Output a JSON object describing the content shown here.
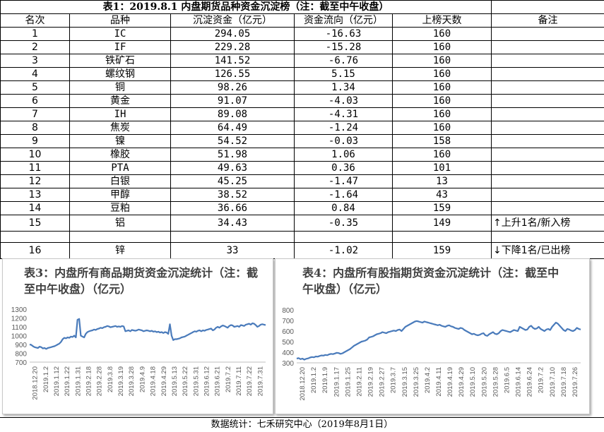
{
  "table": {
    "title": "表1：2019.8.1 内盘期货品种资金沉淀榜（注：截至中午收盘）",
    "headers": [
      "名次",
      "品种",
      "沉淀资金（亿元）",
      "资金流向（亿元）",
      "上榜天数",
      "备注"
    ],
    "rows": [
      {
        "rank": "1",
        "name": "IC",
        "fund": "294.05",
        "flow": "-16.63",
        "days": "160",
        "note": ""
      },
      {
        "rank": "2",
        "name": "IF",
        "fund": "229.28",
        "flow": "-15.28",
        "days": "160",
        "note": ""
      },
      {
        "rank": "3",
        "name": "铁矿石",
        "fund": "141.52",
        "flow": "-6.76",
        "days": "160",
        "note": ""
      },
      {
        "rank": "4",
        "name": "螺纹钢",
        "fund": "126.55",
        "flow": "5.15",
        "days": "160",
        "note": ""
      },
      {
        "rank": "5",
        "name": "铜",
        "fund": "98.26",
        "flow": "1.34",
        "days": "160",
        "note": ""
      },
      {
        "rank": "6",
        "name": "黄金",
        "fund": "91.07",
        "flow": "-4.03",
        "days": "160",
        "note": ""
      },
      {
        "rank": "7",
        "name": "IH",
        "fund": "89.08",
        "flow": "-4.31",
        "days": "160",
        "note": ""
      },
      {
        "rank": "8",
        "name": "焦炭",
        "fund": "64.49",
        "flow": "-1.24",
        "days": "160",
        "note": ""
      },
      {
        "rank": "9",
        "name": "镍",
        "fund": "54.52",
        "flow": "-0.03",
        "days": "158",
        "note": ""
      },
      {
        "rank": "10",
        "name": "橡胶",
        "fund": "51.98",
        "flow": "1.06",
        "days": "160",
        "note": ""
      },
      {
        "rank": "11",
        "name": "PTA",
        "fund": "49.63",
        "flow": "0.36",
        "days": "101",
        "note": ""
      },
      {
        "rank": "12",
        "name": "白银",
        "fund": "45.25",
        "flow": "-1.47",
        "days": "13",
        "note": ""
      },
      {
        "rank": "13",
        "name": "甲醇",
        "fund": "38.52",
        "flow": "-1.64",
        "days": "43",
        "note": ""
      },
      {
        "rank": "14",
        "name": "豆粕",
        "fund": "36.66",
        "flow": "0.84",
        "days": "159",
        "note": ""
      },
      {
        "rank": "15",
        "name": "铝",
        "fund": "34.43",
        "flow": "-0.35",
        "days": "149",
        "note": "↑上升1名/新入榜"
      },
      {
        "rank": "",
        "name": "",
        "fund": "",
        "flow": "",
        "days": "",
        "note": ""
      },
      {
        "rank": "16",
        "name": "锌",
        "fund": "33",
        "flow": "-1.02",
        "days": "159",
        "note": "↓下降1名/已出榜"
      }
    ]
  },
  "chart_data": [
    {
      "type": "line",
      "title": "表3：内盘所有商品期货资金沉淀统计（注：截至中午收盘）（亿元）",
      "color": "#4a7bbb",
      "ylim": [
        700,
        1300
      ],
      "yticks": [
        "700",
        "800",
        "900",
        "1000",
        "1100",
        "1200",
        "1300"
      ],
      "xticks": [
        "2018.12.20",
        "2019.1.2",
        "2019.1.12",
        "2019.1.22",
        "2019.1.31",
        "2019.2.18",
        "2019.2.28",
        "2019.3.8",
        "2019.3.19",
        "2019.3.28",
        "2019.4.9",
        "2019.4.18",
        "2019.4.29",
        "2019.5.13",
        "2019.5.22",
        "2019.5.31",
        "2019.6.12",
        "2019.6.21",
        "2019.7.2",
        "2019.7.11",
        "2019.7.22",
        "2019.7.31"
      ],
      "values": [
        900,
        895,
        880,
        870,
        865,
        860,
        875,
        870,
        855,
        860,
        850,
        860,
        865,
        870,
        875,
        880,
        890,
        900,
        910,
        930,
        960,
        975,
        970,
        980,
        975,
        990,
        985,
        1000,
        980,
        1180,
        1190,
        1000,
        990,
        980,
        1020,
        1040,
        1050,
        1055,
        1060,
        1070,
        1065,
        1075,
        1080,
        1090,
        1085,
        1095,
        1100,
        1110,
        1105,
        1095,
        1100,
        1105,
        1110,
        1100,
        1105,
        1100,
        1110,
        1105,
        1050,
        1055,
        1060,
        1050,
        1065,
        1060,
        1055,
        1060,
        1070,
        1065,
        1060,
        1050,
        1055,
        1060,
        1055,
        1050,
        1055,
        1045,
        1050,
        1040,
        1045,
        1035,
        1040,
        1030,
        1040,
        1035,
        1020,
        1130,
        1000,
        950,
        960,
        960,
        965,
        970,
        980,
        985,
        990,
        1000,
        1010,
        1020,
        1030,
        1040,
        1050,
        1045,
        1055,
        1060,
        1050,
        1060,
        1055,
        1065,
        1070,
        1075,
        1080,
        1060,
        1070,
        1090,
        1100,
        1090,
        1105,
        1115,
        1110,
        1100,
        1090,
        1110,
        1120,
        1115,
        1100,
        1105,
        1110,
        1100,
        1120,
        1115,
        1110,
        1125,
        1130,
        1135,
        1125,
        1140,
        1135,
        1120,
        1100,
        1110,
        1125,
        1130,
        1125,
        1120
      ]
    },
    {
      "type": "line",
      "title": "表4：内盘所有股指期货资金沉淀统计（注：截至中午收盘）（亿元）",
      "color": "#4a7bbb",
      "ylim": [
        300,
        800
      ],
      "yticks": [
        "300",
        "400",
        "500",
        "600",
        "700",
        "800"
      ],
      "xticks": [
        "2018.12.20",
        "2019.1.2",
        "2019.1.9",
        "2019.1.17",
        "2019.1.25",
        "2019.2.11",
        "2019.2.19",
        "2019.2.27",
        "2019.3.7",
        "2019.3.15",
        "2019.3.25",
        "2019.4.2",
        "2019.4.11",
        "2019.4.19",
        "2019.4.29",
        "2019.5.10",
        "2019.5.20",
        "2019.5.28",
        "2019.6.5",
        "2019.6.14",
        "2019.6.24",
        "2019.7.2",
        "2019.7.10",
        "2019.7.18",
        "2019.7.26"
      ],
      "values": [
        340,
        345,
        335,
        340,
        330,
        338,
        342,
        350,
        355,
        352,
        360,
        358,
        365,
        370,
        368,
        375,
        372,
        380,
        385,
        382,
        388,
        395,
        392,
        385,
        390,
        400,
        410,
        420,
        430,
        445,
        460,
        470,
        480,
        490,
        500,
        505,
        510,
        520,
        540,
        545,
        550,
        560,
        570,
        575,
        580,
        590,
        585,
        580,
        590,
        595,
        600,
        605,
        600,
        610,
        615,
        600,
        620,
        640,
        650,
        660,
        670,
        680,
        690,
        695,
        690,
        685,
        680,
        690,
        685,
        680,
        675,
        670,
        665,
        660,
        655,
        660,
        650,
        645,
        640,
        650,
        655,
        645,
        640,
        630,
        625,
        620,
        630,
        625,
        610,
        600,
        590,
        580,
        570,
        575,
        565,
        560,
        565,
        575,
        580,
        560,
        555,
        570,
        580,
        590,
        575,
        570,
        580,
        600,
        610,
        605,
        600,
        595,
        590,
        600,
        610,
        605,
        600,
        640,
        630,
        620,
        610,
        615,
        640,
        650,
        630,
        620,
        625,
        640,
        620,
        610,
        600,
        615,
        620,
        610,
        640,
        660,
        680,
        670,
        650,
        630,
        610,
        600,
        620,
        615,
        605,
        600,
        610,
        630,
        620,
        615
      ]
    }
  ],
  "footer": "数据统计：七禾研究中心（2019年8月1日）"
}
